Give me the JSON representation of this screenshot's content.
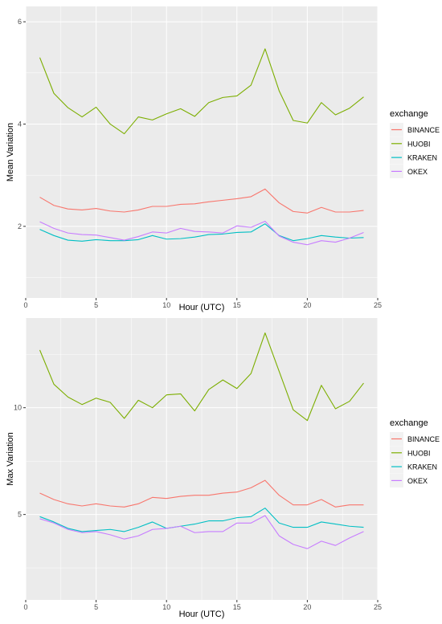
{
  "chart_data": [
    {
      "type": "line",
      "xlabel": "Hour (UTC)",
      "ylabel": "Mean Variation",
      "xlim": [
        0,
        25
      ],
      "ylim": [
        0.6,
        6.3
      ],
      "x_ticks": [
        0,
        5,
        10,
        15,
        20,
        25
      ],
      "y_ticks": [
        2,
        4,
        6
      ],
      "legend_title": "exchange",
      "legend_position": "right",
      "grid": true,
      "x": [
        1,
        2,
        3,
        4,
        5,
        6,
        7,
        8,
        9,
        10,
        11,
        12,
        13,
        14,
        15,
        16,
        17,
        18,
        19,
        20,
        21,
        22,
        23,
        24
      ],
      "series": [
        {
          "name": "BINANCE",
          "color": "#F8766D",
          "values": [
            2.57,
            2.41,
            2.34,
            2.32,
            2.35,
            2.3,
            2.28,
            2.32,
            2.39,
            2.39,
            2.43,
            2.44,
            2.48,
            2.51,
            2.54,
            2.58,
            2.73,
            2.46,
            2.29,
            2.26,
            2.37,
            2.28,
            2.28,
            2.31
          ]
        },
        {
          "name": "HUOBI",
          "color": "#7CAE00",
          "values": [
            5.3,
            4.6,
            4.32,
            4.14,
            4.33,
            4.0,
            3.81,
            4.14,
            4.08,
            4.2,
            4.3,
            4.15,
            4.42,
            4.52,
            4.55,
            4.76,
            5.47,
            4.65,
            4.07,
            4.02,
            4.42,
            4.18,
            4.31,
            4.53
          ]
        },
        {
          "name": "KRAKEN",
          "color": "#00BFC4",
          "values": [
            1.94,
            1.82,
            1.73,
            1.71,
            1.74,
            1.72,
            1.72,
            1.74,
            1.82,
            1.75,
            1.76,
            1.79,
            1.84,
            1.85,
            1.88,
            1.89,
            2.05,
            1.82,
            1.72,
            1.76,
            1.82,
            1.79,
            1.77,
            1.78
          ]
        },
        {
          "name": "OKEX",
          "color": "#C77CFF",
          "values": [
            2.09,
            1.96,
            1.87,
            1.84,
            1.83,
            1.78,
            1.73,
            1.8,
            1.89,
            1.87,
            1.96,
            1.9,
            1.89,
            1.87,
            2.01,
            1.98,
            2.1,
            1.81,
            1.69,
            1.64,
            1.72,
            1.69,
            1.77,
            1.88
          ]
        }
      ]
    },
    {
      "type": "line",
      "xlabel": "Hour (UTC)",
      "ylabel": "Max Variation",
      "xlim": [
        0,
        25
      ],
      "ylim": [
        1.0,
        14.2
      ],
      "x_ticks": [
        0,
        5,
        10,
        15,
        20,
        25
      ],
      "y_ticks": [
        5,
        10
      ],
      "legend_title": "exchange",
      "legend_position": "right",
      "grid": true,
      "x": [
        1,
        2,
        3,
        4,
        5,
        6,
        7,
        8,
        9,
        10,
        11,
        12,
        13,
        14,
        15,
        16,
        17,
        18,
        19,
        20,
        21,
        22,
        23,
        24
      ],
      "series": [
        {
          "name": "BINANCE",
          "color": "#F8766D",
          "values": [
            6.0,
            5.7,
            5.5,
            5.4,
            5.5,
            5.4,
            5.35,
            5.5,
            5.8,
            5.75,
            5.85,
            5.9,
            5.9,
            6.0,
            6.05,
            6.25,
            6.6,
            5.9,
            5.45,
            5.45,
            5.7,
            5.35,
            5.45,
            5.45
          ]
        },
        {
          "name": "HUOBI",
          "color": "#7CAE00",
          "values": [
            12.7,
            11.1,
            10.5,
            10.15,
            10.45,
            10.25,
            9.5,
            10.35,
            10.0,
            10.6,
            10.65,
            9.85,
            10.85,
            11.3,
            10.9,
            11.6,
            13.5,
            11.7,
            9.9,
            9.4,
            11.05,
            9.95,
            10.3,
            11.15
          ]
        },
        {
          "name": "KRAKEN",
          "color": "#00BFC4",
          "values": [
            4.9,
            4.65,
            4.35,
            4.2,
            4.25,
            4.3,
            4.2,
            4.4,
            4.65,
            4.35,
            4.45,
            4.55,
            4.7,
            4.7,
            4.85,
            4.9,
            5.3,
            4.6,
            4.4,
            4.4,
            4.65,
            4.55,
            4.45,
            4.4
          ]
        },
        {
          "name": "OKEX",
          "color": "#C77CFF",
          "values": [
            4.8,
            4.6,
            4.3,
            4.15,
            4.2,
            4.05,
            3.85,
            4.0,
            4.3,
            4.35,
            4.45,
            4.15,
            4.2,
            4.2,
            4.6,
            4.6,
            4.95,
            4.0,
            3.6,
            3.4,
            3.75,
            3.55,
            3.9,
            4.2
          ]
        }
      ]
    }
  ]
}
